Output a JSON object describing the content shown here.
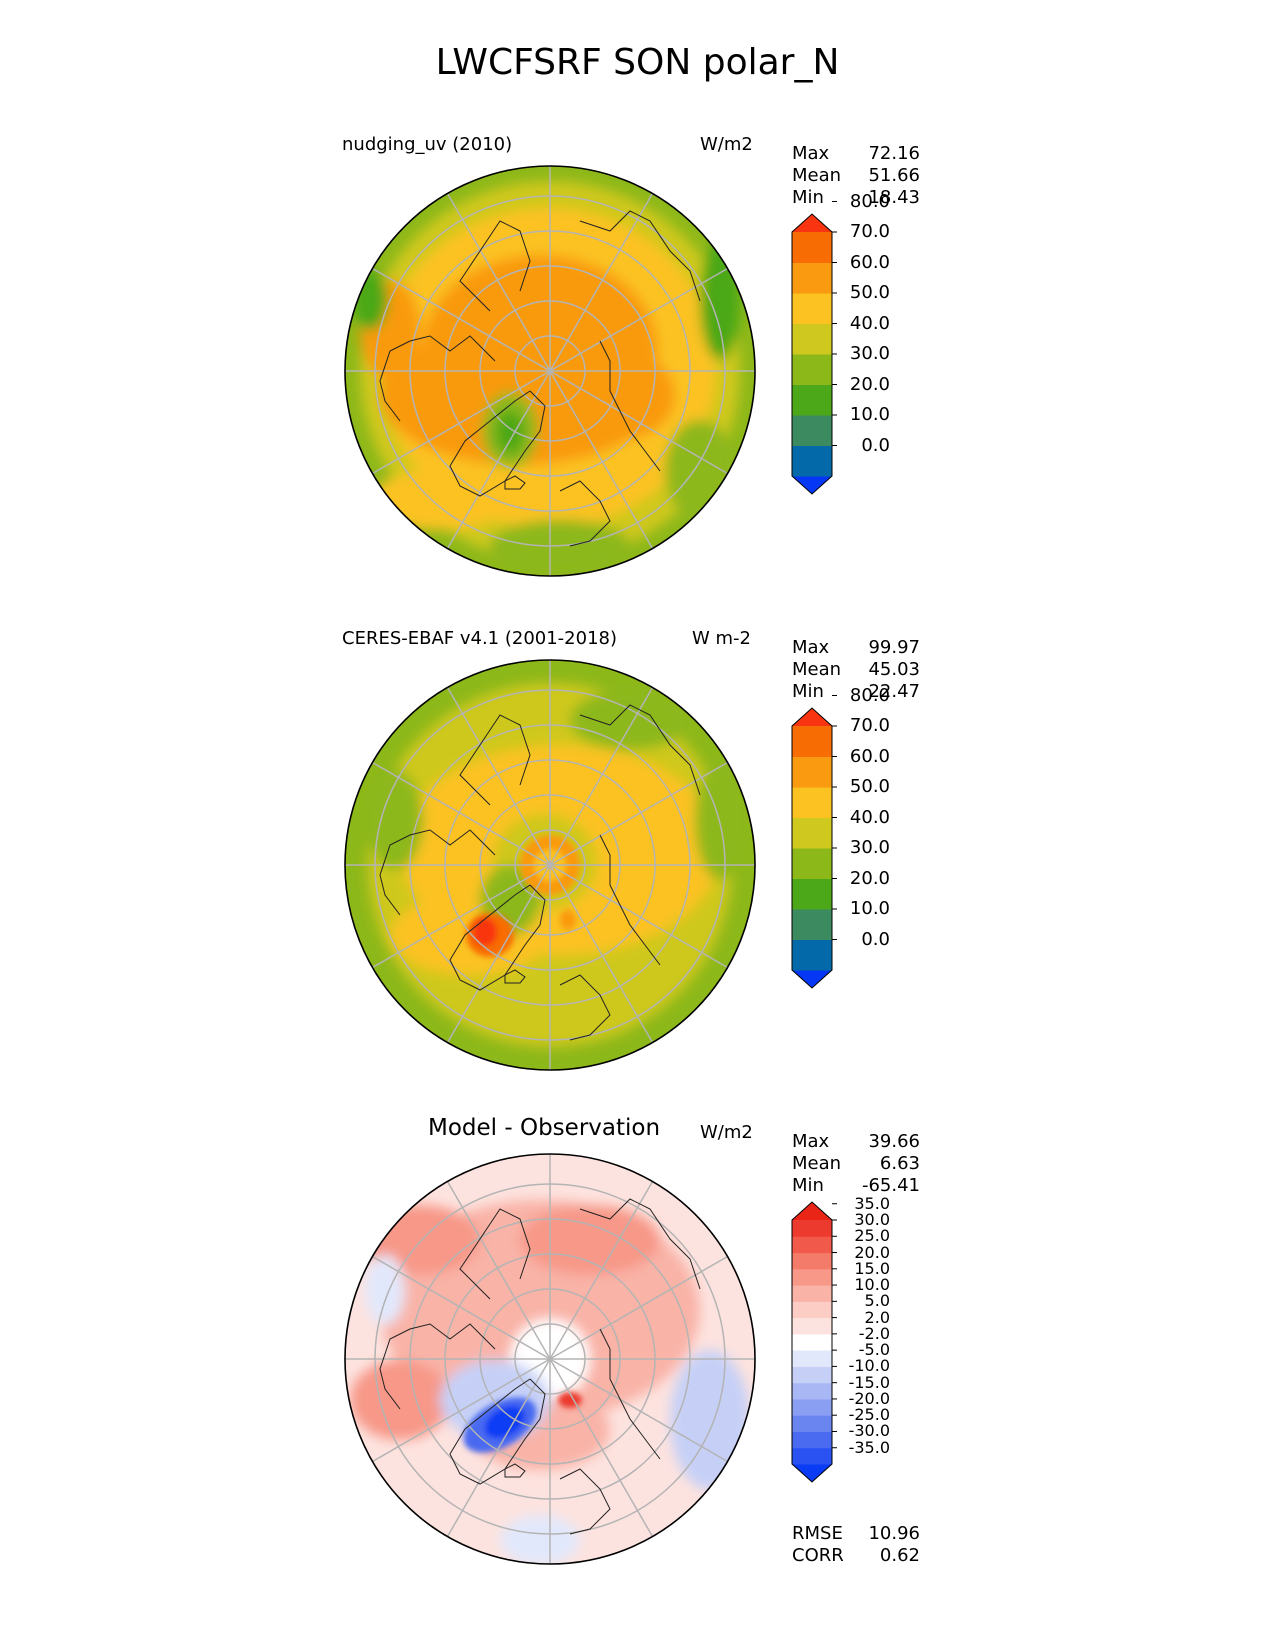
{
  "title": "LWCFSRF SON polar_N",
  "panels": [
    {
      "label_left": "nudging_uv (2010)",
      "label_right": "W/m2",
      "stats": {
        "max_label": "Max",
        "max": "72.16",
        "mean_label": "Mean",
        "mean": "51.66",
        "min_label": "Min",
        "min": "18.43"
      },
      "colorbar_ticks": [
        "80.0",
        "70.0",
        "60.0",
        "50.0",
        "40.0",
        "30.0",
        "20.0",
        "10.0",
        "0.0"
      ]
    },
    {
      "label_left": "CERES-EBAF v4.1 (2001-2018)",
      "label_right": "W m-2",
      "stats": {
        "max_label": "Max",
        "max": "99.97",
        "mean_label": "Mean",
        "mean": "45.03",
        "min_label": "Min",
        "min": "22.47"
      },
      "colorbar_ticks": [
        "80.0",
        "70.0",
        "60.0",
        "50.0",
        "40.0",
        "30.0",
        "20.0",
        "10.0",
        "0.0"
      ]
    },
    {
      "title": "Model - Observation",
      "label_right": "W/m2",
      "stats": {
        "max_label": "Max",
        "max": "39.66",
        "mean_label": "Mean",
        "mean": "6.63",
        "min_label": "Min",
        "min": "-65.41"
      },
      "colorbar_ticks": [
        "35.0",
        "30.0",
        "25.0",
        "20.0",
        "15.0",
        "10.0",
        "5.0",
        "2.0",
        "-2.0",
        "-5.0",
        "-10.0",
        "-15.0",
        "-20.0",
        "-25.0",
        "-30.0",
        "-35.0"
      ],
      "rmse_label": "RMSE",
      "rmse": "10.96",
      "corr_label": "CORR",
      "corr": "0.62"
    }
  ],
  "chart_data": [
    {
      "type": "heatmap",
      "projection": "north polar stereographic",
      "title": "nudging_uv (2010)",
      "units": "W/m2",
      "colorbar_levels": [
        0,
        10,
        20,
        30,
        40,
        50,
        60,
        70,
        80
      ],
      "colorbar_colors": [
        "#0637f5",
        "#0469a8",
        "#3c8a60",
        "#4ca819",
        "#8db81a",
        "#cfc81e",
        "#fbc222",
        "#f99a10",
        "#f86c04",
        "#f83510"
      ],
      "extend": "both",
      "max": 72.16,
      "mean": 51.66,
      "min": 18.43
    },
    {
      "type": "heatmap",
      "projection": "north polar stereographic",
      "title": "CERES-EBAF v4.1 (2001-2018)",
      "units": "W m-2",
      "colorbar_levels": [
        0,
        10,
        20,
        30,
        40,
        50,
        60,
        70,
        80
      ],
      "colorbar_colors": [
        "#0637f5",
        "#0469a8",
        "#3c8a60",
        "#4ca819",
        "#8db81a",
        "#cfc81e",
        "#fbc222",
        "#f99a10",
        "#f86c04",
        "#f83510"
      ],
      "extend": "both",
      "max": 99.97,
      "mean": 45.03,
      "min": 22.47
    },
    {
      "type": "heatmap",
      "projection": "north polar stereographic",
      "title": "Model - Observation",
      "units": "W/m2",
      "colorbar_levels": [
        -35,
        -30,
        -25,
        -20,
        -15,
        -10,
        -5,
        -2,
        2,
        5,
        10,
        15,
        20,
        25,
        30,
        35
      ],
      "colorbar_colors": [
        "#0a3cf5",
        "#2a52f2",
        "#4a6af0",
        "#6a84f0",
        "#8a9ff2",
        "#a9b8f5",
        "#c6d0f7",
        "#e2e8fb",
        "#ffffff",
        "#fde3df",
        "#fbcdc5",
        "#f9b3a7",
        "#f79888",
        "#f47a69",
        "#f1594a",
        "#ec3a2e",
        "#e82516"
      ],
      "extend": "both",
      "max": 39.66,
      "mean": 6.63,
      "min": -65.41,
      "rmse": 10.96,
      "corr": 0.62
    }
  ]
}
